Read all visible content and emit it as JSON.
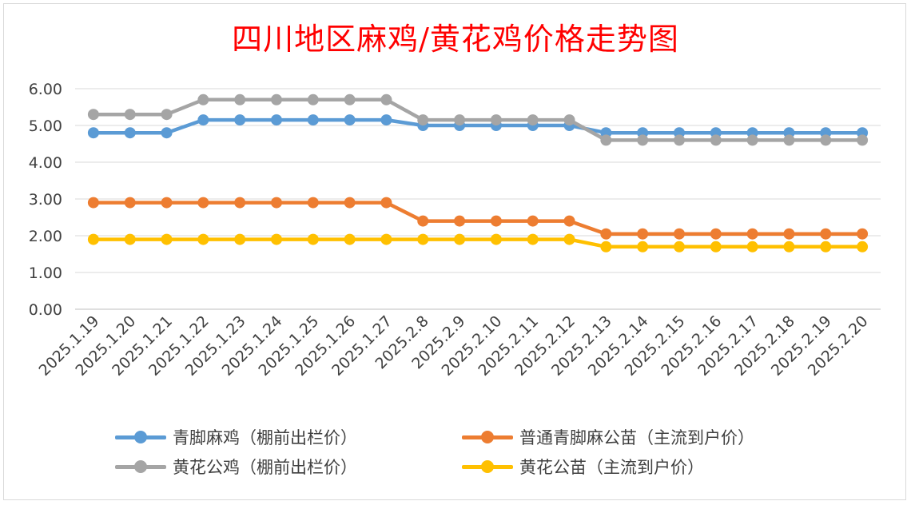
{
  "chart_data": {
    "type": "line",
    "title": "四川地区麻鸡/黄花鸡价格走势图",
    "categories": [
      "2025.1.19",
      "2025.1.20",
      "2025.1.21",
      "2025.1.22",
      "2025.1.23",
      "2025.1.24",
      "2025.1.25",
      "2025.1.26",
      "2025.1.27",
      "2025.2.8",
      "2025.2.9",
      "2025.2.10",
      "2025.2.11",
      "2025.2.12",
      "2025.2.13",
      "2025.2.14",
      "2025.2.15",
      "2025.2.16",
      "2025.2.17",
      "2025.2.18",
      "2025.2.19",
      "2025.2.20"
    ],
    "ylim": [
      0,
      6
    ],
    "yticks": [
      "0.00",
      "1.00",
      "2.00",
      "3.00",
      "4.00",
      "5.00",
      "6.00"
    ],
    "grid": true,
    "legend_position": "bottom",
    "series": [
      {
        "name": "青脚麻鸡（棚前出栏价）",
        "color": "#5b9bd5",
        "values": [
          4.8,
          4.8,
          4.8,
          5.15,
          5.15,
          5.15,
          5.15,
          5.15,
          5.15,
          5.0,
          5.0,
          5.0,
          5.0,
          5.0,
          4.8,
          4.8,
          4.8,
          4.8,
          4.8,
          4.8,
          4.8,
          4.8
        ]
      },
      {
        "name": "普通青脚麻公苗（主流到户价）",
        "color": "#ed7d31",
        "values": [
          2.9,
          2.9,
          2.9,
          2.9,
          2.9,
          2.9,
          2.9,
          2.9,
          2.9,
          2.4,
          2.4,
          2.4,
          2.4,
          2.4,
          2.05,
          2.05,
          2.05,
          2.05,
          2.05,
          2.05,
          2.05,
          2.05
        ]
      },
      {
        "name": "黄花公鸡（棚前出栏价）",
        "color": "#a5a5a5",
        "values": [
          5.3,
          5.3,
          5.3,
          5.7,
          5.7,
          5.7,
          5.7,
          5.7,
          5.7,
          5.15,
          5.15,
          5.15,
          5.15,
          5.15,
          4.6,
          4.6,
          4.6,
          4.6,
          4.6,
          4.6,
          4.6,
          4.6
        ]
      },
      {
        "name": "黄花公苗（主流到户价）",
        "color": "#ffc000",
        "values": [
          1.9,
          1.9,
          1.9,
          1.9,
          1.9,
          1.9,
          1.9,
          1.9,
          1.9,
          1.9,
          1.9,
          1.9,
          1.9,
          1.9,
          1.7,
          1.7,
          1.7,
          1.7,
          1.7,
          1.7,
          1.7,
          1.7
        ]
      }
    ]
  }
}
